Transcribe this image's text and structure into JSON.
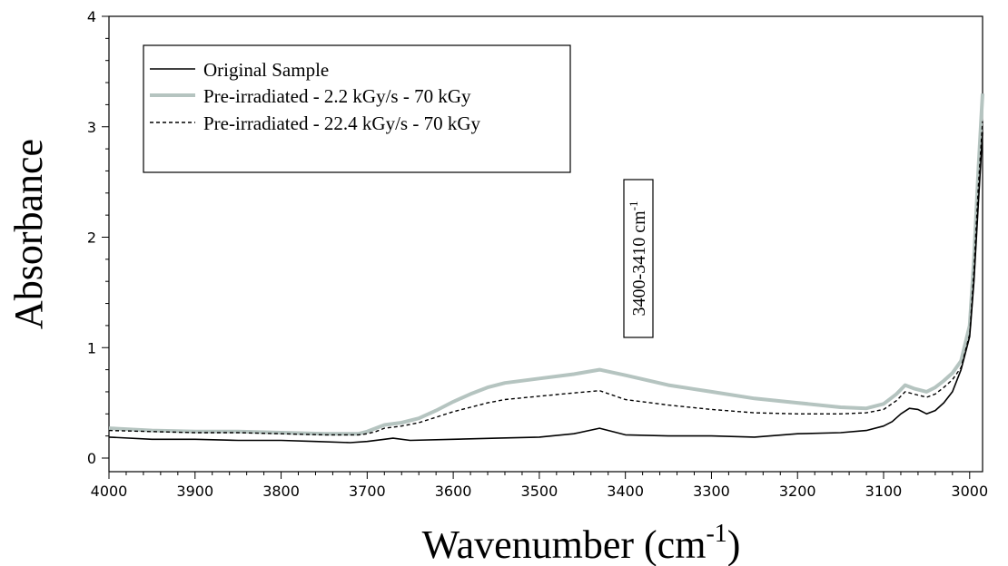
{
  "chart_data": {
    "type": "line",
    "xlabel": "Wavenumber (cm",
    "xlabel_sup": "-1",
    "xlabel_end": ")",
    "ylabel": "Absorbance",
    "xlim": [
      4000,
      2985
    ],
    "ylim": [
      0,
      4
    ],
    "x_ticks": [
      "4000",
      "3900",
      "3800",
      "3700",
      "3600",
      "3500",
      "3400",
      "3300",
      "3200",
      "3100",
      "3000"
    ],
    "y_ticks": [
      "0",
      "1",
      "2",
      "3",
      "4"
    ],
    "grid": false,
    "legend_position": "top-left",
    "annotation": {
      "text": "3400-3410 cm",
      "sup": "-1",
      "x": 3410,
      "y": 1.9
    },
    "series": [
      {
        "name": "Original Sample",
        "color": "#000000",
        "style": "solid",
        "x": [
          4000,
          3950,
          3900,
          3850,
          3800,
          3760,
          3720,
          3700,
          3680,
          3670,
          3650,
          3600,
          3550,
          3500,
          3460,
          3430,
          3400,
          3350,
          3300,
          3250,
          3200,
          3150,
          3120,
          3100,
          3090,
          3080,
          3070,
          3060,
          3050,
          3040,
          3030,
          3020,
          3010,
          3000,
          2995,
          2990,
          2985
        ],
        "y": [
          0.19,
          0.17,
          0.17,
          0.16,
          0.16,
          0.15,
          0.14,
          0.15,
          0.17,
          0.18,
          0.16,
          0.17,
          0.18,
          0.19,
          0.22,
          0.27,
          0.21,
          0.2,
          0.2,
          0.19,
          0.22,
          0.23,
          0.25,
          0.29,
          0.33,
          0.4,
          0.45,
          0.44,
          0.4,
          0.43,
          0.5,
          0.6,
          0.8,
          1.1,
          1.6,
          2.3,
          2.95
        ]
      },
      {
        "name": "Pre-irradiated - 2.2 kGy/s - 70 kGy",
        "color": "#b5c4c0",
        "style": "thick",
        "x": [
          4000,
          3950,
          3900,
          3850,
          3800,
          3750,
          3710,
          3700,
          3690,
          3680,
          3660,
          3640,
          3620,
          3600,
          3580,
          3560,
          3540,
          3500,
          3460,
          3430,
          3400,
          3350,
          3300,
          3250,
          3200,
          3150,
          3120,
          3100,
          3085,
          3075,
          3065,
          3050,
          3040,
          3030,
          3020,
          3010,
          3000,
          2995,
          2990,
          2985
        ],
        "y": [
          0.27,
          0.25,
          0.24,
          0.24,
          0.23,
          0.22,
          0.22,
          0.24,
          0.27,
          0.3,
          0.32,
          0.36,
          0.43,
          0.51,
          0.58,
          0.64,
          0.68,
          0.72,
          0.76,
          0.8,
          0.75,
          0.66,
          0.6,
          0.54,
          0.5,
          0.46,
          0.45,
          0.49,
          0.58,
          0.66,
          0.63,
          0.6,
          0.64,
          0.7,
          0.77,
          0.88,
          1.2,
          1.8,
          2.6,
          3.3
        ]
      },
      {
        "name": "Pre-irradiated - 22.4 kGy/s - 70 kGy",
        "color": "#000000",
        "style": "dashed",
        "x": [
          4000,
          3950,
          3900,
          3850,
          3800,
          3750,
          3710,
          3700,
          3690,
          3680,
          3660,
          3640,
          3620,
          3600,
          3580,
          3560,
          3540,
          3500,
          3460,
          3430,
          3400,
          3350,
          3300,
          3250,
          3200,
          3150,
          3120,
          3100,
          3085,
          3075,
          3065,
          3050,
          3040,
          3030,
          3020,
          3010,
          3000,
          2995,
          2990,
          2985
        ],
        "y": [
          0.25,
          0.24,
          0.23,
          0.23,
          0.22,
          0.21,
          0.21,
          0.22,
          0.24,
          0.27,
          0.29,
          0.32,
          0.37,
          0.42,
          0.46,
          0.5,
          0.53,
          0.56,
          0.59,
          0.61,
          0.53,
          0.48,
          0.44,
          0.41,
          0.4,
          0.4,
          0.41,
          0.44,
          0.52,
          0.6,
          0.58,
          0.55,
          0.58,
          0.64,
          0.71,
          0.82,
          1.12,
          1.7,
          2.45,
          3.05
        ]
      }
    ]
  }
}
